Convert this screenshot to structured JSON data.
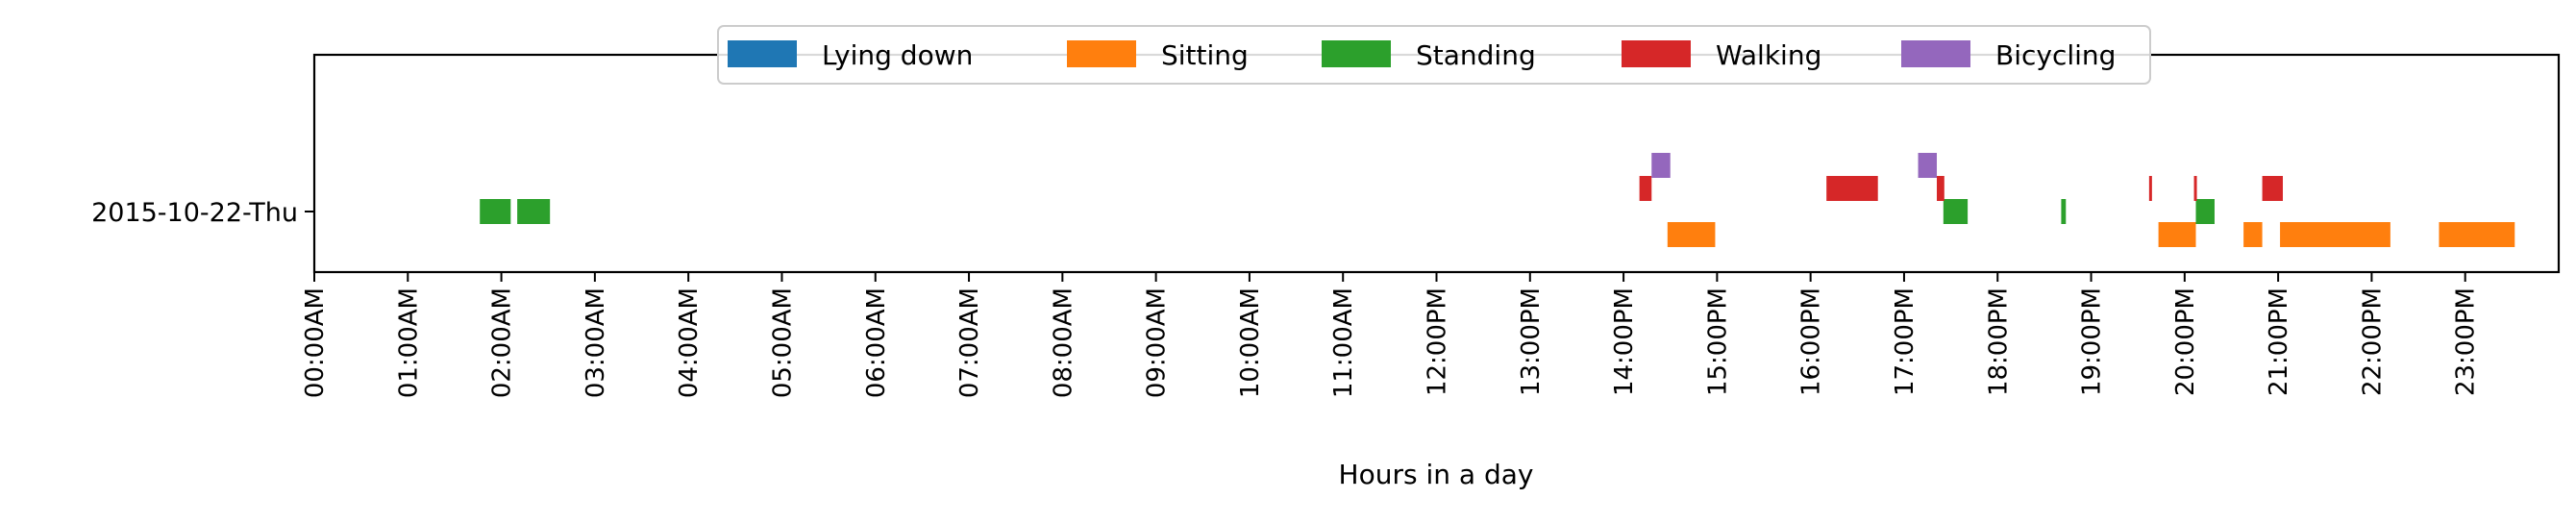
{
  "chart_data": {
    "type": "timeline",
    "row_label": "2015-10-22-Thu",
    "xlabel": "Hours in a day",
    "xlim": [
      0,
      24
    ],
    "x_ticks": [
      {
        "hour": 0,
        "label": "00:00AM"
      },
      {
        "hour": 1,
        "label": "01:00AM"
      },
      {
        "hour": 2,
        "label": "02:00AM"
      },
      {
        "hour": 3,
        "label": "03:00AM"
      },
      {
        "hour": 4,
        "label": "04:00AM"
      },
      {
        "hour": 5,
        "label": "05:00AM"
      },
      {
        "hour": 6,
        "label": "06:00AM"
      },
      {
        "hour": 7,
        "label": "07:00AM"
      },
      {
        "hour": 8,
        "label": "08:00AM"
      },
      {
        "hour": 9,
        "label": "09:00AM"
      },
      {
        "hour": 10,
        "label": "10:00AM"
      },
      {
        "hour": 11,
        "label": "11:00AM"
      },
      {
        "hour": 12,
        "label": "12:00PM"
      },
      {
        "hour": 13,
        "label": "13:00PM"
      },
      {
        "hour": 14,
        "label": "14:00PM"
      },
      {
        "hour": 15,
        "label": "15:00PM"
      },
      {
        "hour": 16,
        "label": "16:00PM"
      },
      {
        "hour": 17,
        "label": "17:00PM"
      },
      {
        "hour": 18,
        "label": "18:00PM"
      },
      {
        "hour": 19,
        "label": "19:00PM"
      },
      {
        "hour": 20,
        "label": "20:00PM"
      },
      {
        "hour": 21,
        "label": "21:00PM"
      },
      {
        "hour": 22,
        "label": "22:00PM"
      },
      {
        "hour": 23,
        "label": "23:00PM"
      }
    ],
    "legend_position": "top-center",
    "series": [
      {
        "name": "Lying down",
        "color": "#1f77b4",
        "segments": []
      },
      {
        "name": "Sitting",
        "color": "#ff7f0e",
        "segments": [
          [
            14.47,
            14.98
          ],
          [
            19.72,
            20.12
          ],
          [
            20.63,
            20.83
          ],
          [
            21.02,
            22.2
          ],
          [
            22.72,
            23.53
          ]
        ]
      },
      {
        "name": "Standing",
        "color": "#2ca02c",
        "segments": [
          [
            1.77,
            2.1
          ],
          [
            2.17,
            2.52
          ],
          [
            17.42,
            17.68
          ],
          [
            18.68,
            18.73
          ],
          [
            20.12,
            20.32
          ]
        ]
      },
      {
        "name": "Walking",
        "color": "#d62728",
        "segments": [
          [
            14.17,
            14.3
          ],
          [
            16.17,
            16.72
          ],
          [
            17.35,
            17.43
          ],
          [
            19.62,
            19.65
          ],
          [
            20.1,
            20.13
          ],
          [
            20.83,
            21.05
          ]
        ]
      },
      {
        "name": "Bicycling",
        "color": "#9467bd",
        "segments": [
          [
            14.3,
            14.5
          ],
          [
            17.15,
            17.35
          ]
        ]
      }
    ]
  }
}
